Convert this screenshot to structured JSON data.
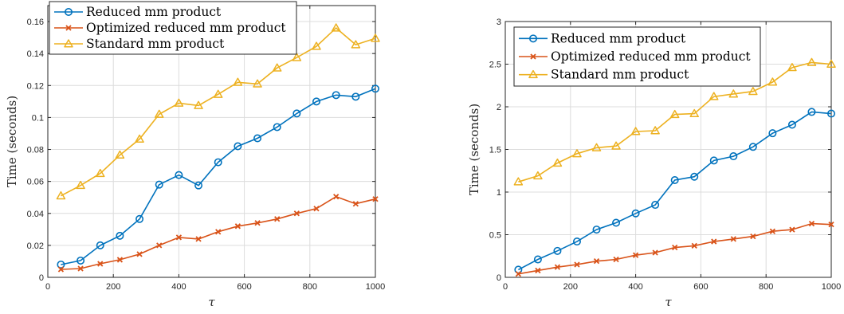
{
  "chart_data": [
    {
      "type": "line",
      "title": "",
      "xlabel": "τ",
      "ylabel": "Time (seconds)",
      "xlim": [
        0,
        1000
      ],
      "ylim": [
        0,
        0.17
      ],
      "xticks": [
        "0",
        "200",
        "400",
        "600",
        "800",
        "1000"
      ],
      "yticks": [
        "0",
        "0.02",
        "0.04",
        "0.06",
        "0.08",
        "0.1",
        "0.12",
        "0.14",
        "0.16"
      ],
      "grid": true,
      "legend_position": "top-left",
      "x": [
        40,
        100,
        160,
        220,
        280,
        340,
        400,
        460,
        520,
        580,
        640,
        700,
        760,
        820,
        880,
        940,
        1000
      ],
      "series": [
        {
          "name": "Reduced mm product",
          "color": "#0072BD",
          "marker": "circle",
          "values": [
            0.008,
            0.0105,
            0.02,
            0.026,
            0.0365,
            0.058,
            0.064,
            0.0575,
            0.072,
            0.082,
            0.087,
            0.094,
            0.1025,
            0.11,
            0.114,
            0.113,
            0.118
          ]
        },
        {
          "name": "Optimized reduced mm product",
          "color": "#D95319",
          "marker": "x",
          "values": [
            0.005,
            0.0055,
            0.0085,
            0.011,
            0.0145,
            0.02,
            0.025,
            0.024,
            0.0285,
            0.032,
            0.034,
            0.0365,
            0.04,
            0.043,
            0.0505,
            0.046,
            0.049
          ]
        },
        {
          "name": "Standard mm product",
          "color": "#EDB120",
          "marker": "triangle",
          "values": [
            0.051,
            0.0575,
            0.065,
            0.0765,
            0.0865,
            0.102,
            0.109,
            0.1075,
            0.1145,
            0.122,
            0.121,
            0.131,
            0.1375,
            0.1445,
            0.156,
            0.1455,
            0.1495
          ]
        }
      ]
    },
    {
      "type": "line",
      "title": "",
      "xlabel": "τ",
      "ylabel": "Time (seconds)",
      "xlim": [
        0,
        1000
      ],
      "ylim": [
        0,
        3
      ],
      "xticks": [
        "0",
        "200",
        "400",
        "600",
        "800",
        "1000"
      ],
      "yticks": [
        "0",
        "0.5",
        "1",
        "1.5",
        "2",
        "2.5",
        "3"
      ],
      "grid": true,
      "legend_position": "top-left",
      "x": [
        40,
        100,
        160,
        220,
        280,
        340,
        400,
        460,
        520,
        580,
        640,
        700,
        760,
        820,
        880,
        940,
        1000
      ],
      "series": [
        {
          "name": "Reduced mm product",
          "color": "#0072BD",
          "marker": "circle",
          "values": [
            0.09,
            0.21,
            0.31,
            0.42,
            0.56,
            0.64,
            0.75,
            0.85,
            1.14,
            1.18,
            1.37,
            1.42,
            1.53,
            1.69,
            1.79,
            1.94,
            1.92
          ]
        },
        {
          "name": "Optimized reduced mm product",
          "color": "#D95319",
          "marker": "x",
          "values": [
            0.04,
            0.08,
            0.12,
            0.15,
            0.19,
            0.21,
            0.26,
            0.29,
            0.35,
            0.37,
            0.42,
            0.45,
            0.48,
            0.54,
            0.56,
            0.63,
            0.62
          ]
        },
        {
          "name": "Standard mm product",
          "color": "#EDB120",
          "marker": "triangle",
          "values": [
            1.12,
            1.19,
            1.34,
            1.45,
            1.52,
            1.54,
            1.71,
            1.72,
            1.91,
            1.92,
            2.12,
            2.15,
            2.18,
            2.29,
            2.46,
            2.52,
            2.5
          ]
        }
      ]
    }
  ]
}
